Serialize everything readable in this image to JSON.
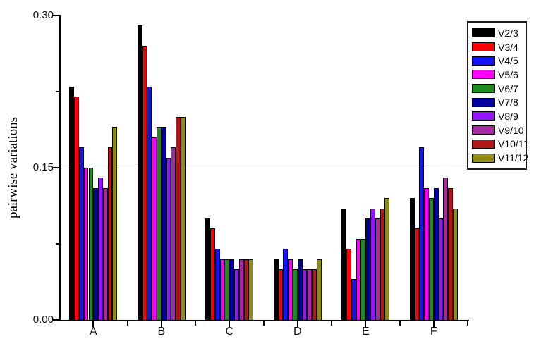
{
  "chart_data": {
    "type": "bar",
    "title": "",
    "xlabel": "",
    "ylabel": "pairwise variations",
    "categories": [
      "A",
      "B",
      "C",
      "D",
      "E",
      "F"
    ],
    "series": [
      {
        "name": "V2/3",
        "color": "#000000",
        "values": [
          0.23,
          0.29,
          0.1,
          0.06,
          0.11,
          0.12
        ]
      },
      {
        "name": "V3/4",
        "color": "#fd0006",
        "values": [
          0.22,
          0.27,
          0.09,
          0.05,
          0.07,
          0.09
        ]
      },
      {
        "name": "V4/5",
        "color": "#1313fd",
        "values": [
          0.17,
          0.23,
          0.07,
          0.07,
          0.04,
          0.17
        ]
      },
      {
        "name": "V5/6",
        "color": "#fb00fb",
        "values": [
          0.15,
          0.18,
          0.06,
          0.06,
          0.08,
          0.13
        ]
      },
      {
        "name": "V6/7",
        "color": "#1e8c1e",
        "values": [
          0.15,
          0.19,
          0.06,
          0.05,
          0.08,
          0.12
        ]
      },
      {
        "name": "V7/8",
        "color": "#0000a0",
        "values": [
          0.13,
          0.19,
          0.06,
          0.06,
          0.1,
          0.13
        ]
      },
      {
        "name": "V8/9",
        "color": "#9414fb",
        "values": [
          0.14,
          0.16,
          0.05,
          0.05,
          0.11,
          0.1
        ]
      },
      {
        "name": "V9/10",
        "color": "#a928a9",
        "values": [
          0.13,
          0.17,
          0.06,
          0.05,
          0.1,
          0.14
        ]
      },
      {
        "name": "V10/11",
        "color": "#b31619",
        "values": [
          0.17,
          0.2,
          0.06,
          0.05,
          0.11,
          0.13
        ]
      },
      {
        "name": "V11/12",
        "color": "#8f8a10",
        "values": [
          0.19,
          0.2,
          0.06,
          0.06,
          0.12,
          0.11
        ]
      }
    ],
    "ylim": [
      0.0,
      0.3
    ],
    "y_major_tick_values": [
      0.0,
      0.15,
      0.3
    ],
    "y_tick_labels": [
      "0.00",
      "0.15",
      "0.30"
    ],
    "y_minor_tick_values": [
      0.075,
      0.225
    ],
    "gridline_y": 0.15,
    "gridline_color": "#b3b3b3",
    "grid": "single horizontal reference line at 0.15",
    "legend_position": "top-right",
    "legend_entries": [
      "V2/3",
      "V3/4",
      "V4/5",
      "V5/6",
      "V6/7",
      "V7/8",
      "V8/9",
      "V9/10",
      "V10/11",
      "V11/12"
    ]
  }
}
